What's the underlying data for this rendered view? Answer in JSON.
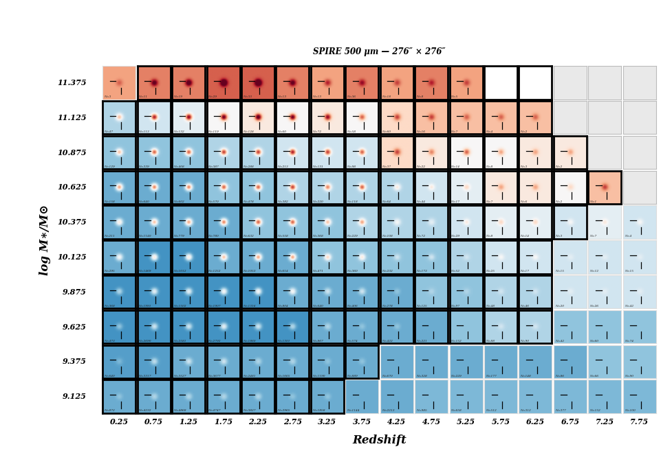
{
  "chart_data": {
    "type": "image_grid",
    "title": "SPIRE 500 μm — 276″ × 276″",
    "x_label": "Redshift",
    "y_label": "log M∗/M⊙",
    "x": [
      0.25,
      0.75,
      1.25,
      1.75,
      2.25,
      2.75,
      3.25,
      3.75,
      4.25,
      4.75,
      5.25,
      5.75,
      6.25,
      6.75,
      7.25,
      7.75
    ],
    "y": [
      11.375,
      11.125,
      10.875,
      10.625,
      10.375,
      10.125,
      9.875,
      9.625,
      9.375,
      9.125
    ],
    "vlim": [
      -1,
      1
    ],
    "n_labels": [
      [
        "N=3",
        "N=11",
        "N=19",
        "N=29",
        "N=33",
        "N=13",
        "N=13",
        "N=36",
        "N=18",
        "N=8",
        "N=5",
        null,
        null,
        null,
        null,
        null
      ],
      [
        "N=47",
        "N=113",
        "N=132",
        "N=119",
        "N=128",
        "N=60",
        "N=72",
        "N=58",
        "N=60",
        "N=16",
        "N=7",
        "N=4",
        "N=2",
        null,
        null,
        null
      ],
      [
        "N=129",
        "N=339",
        "N=408",
        "N=387",
        "N=288",
        "N=213",
        "N=131",
        "N=98",
        "N=37",
        "N=22",
        "N=14",
        "N=8",
        "N=3",
        "N=2",
        null,
        null
      ],
      [
        "N=158",
        "N=640",
        "N=602",
        "N=570",
        "N=478",
        "N=382",
        "N=220",
        "N=118",
        "N=64",
        "N=44",
        "N=17",
        "N=7",
        "N=6",
        "N=2",
        "N=1",
        null
      ],
      [
        "N=211",
        "N=1140",
        "N=779",
        "N=780",
        "N=632",
        "N=558",
        "N=368",
        "N=229",
        "N=108",
        "N=72",
        "N=29",
        "N=8",
        "N=14",
        "N=3",
        "N=7",
        "N=4"
      ],
      [
        "N=295",
        "N=1469",
        "N=1012",
        "N=1252",
        "N=1053",
        "N=614",
        "N=471",
        "N=360",
        "N=232",
        "N=173",
        "N=52",
        "N=25",
        "N=17",
        "N=15",
        "N=12",
        "N=15"
      ],
      [
        "N=368",
        "N=1991",
        "N=1502",
        "N=1907",
        "N=1316",
        "N=804",
        "N=640",
        "N=406",
        "N=278",
        "N=125",
        "N=97",
        "N=48",
        "N=46",
        "N=20",
        "N=26",
        "N=42"
      ],
      [
        "N=473",
        "N=2690",
        "N=2581",
        "N=2792",
        "N=1860",
        "N=1301",
        "N=867",
        "N=574",
        "N=422",
        "N=221",
        "N=152",
        "N=88",
        "N=90",
        "N=42",
        "N=60",
        "N=74"
      ],
      [
        "N=640",
        "N=3317",
        "N=3527",
        "N=3677",
        "N=2481",
        "N=1665",
        "N=1190",
        "N=889",
        "N=670",
        "N=328",
        "N=229",
        "N=177",
        "N=148",
        "N=86",
        "N=66",
        "N=90"
      ],
      [
        "N=872",
        "N=4232",
        "N=4868",
        "N=4747",
        "N=3827",
        "N=2965",
        "N=1858",
        "N=1144",
        "N=2213",
        "N=985",
        "N=658",
        "N=512",
        "N=312",
        "N=377",
        "N=152",
        "N=100"
      ]
    ],
    "outlined": [
      [
        false,
        true,
        true,
        true,
        true,
        true,
        true,
        true,
        true,
        true,
        true,
        true,
        true,
        false,
        false,
        false
      ],
      [
        true,
        true,
        true,
        true,
        true,
        true,
        true,
        true,
        true,
        true,
        true,
        true,
        true,
        false,
        false,
        false
      ],
      [
        true,
        true,
        true,
        true,
        true,
        true,
        true,
        true,
        true,
        true,
        true,
        true,
        true,
        true,
        false,
        false
      ],
      [
        true,
        true,
        true,
        true,
        true,
        true,
        true,
        true,
        true,
        true,
        true,
        true,
        true,
        true,
        true,
        false
      ],
      [
        true,
        true,
        true,
        true,
        true,
        true,
        true,
        true,
        true,
        true,
        true,
        true,
        true,
        true,
        false,
        false
      ],
      [
        true,
        true,
        true,
        true,
        true,
        true,
        true,
        true,
        true,
        true,
        true,
        true,
        true,
        false,
        false,
        false
      ],
      [
        true,
        true,
        true,
        true,
        true,
        true,
        true,
        true,
        true,
        true,
        true,
        true,
        true,
        false,
        false,
        false
      ],
      [
        true,
        true,
        true,
        true,
        true,
        true,
        true,
        true,
        true,
        true,
        true,
        true,
        true,
        false,
        false,
        false
      ],
      [
        true,
        true,
        true,
        true,
        true,
        true,
        true,
        true,
        false,
        false,
        false,
        false,
        false,
        false,
        false,
        false
      ],
      [
        true,
        true,
        true,
        true,
        true,
        true,
        true,
        false,
        false,
        false,
        false,
        false,
        false,
        false,
        false,
        false
      ]
    ],
    "level": [
      [
        0.4,
        0.5,
        0.5,
        0.6,
        0.6,
        0.5,
        0.4,
        0.5,
        0.4,
        0.5,
        0.4,
        null,
        null,
        null,
        null,
        null
      ],
      [
        -0.3,
        -0.2,
        -0.1,
        0.0,
        0.1,
        0.0,
        0.1,
        0.0,
        0.2,
        0.3,
        0.3,
        0.3,
        0.3,
        null,
        null,
        null
      ],
      [
        -0.4,
        -0.4,
        -0.4,
        -0.3,
        -0.3,
        -0.2,
        -0.2,
        -0.2,
        0.2,
        0.1,
        0.0,
        0.0,
        0.1,
        0.1,
        null,
        null
      ],
      [
        -0.5,
        -0.5,
        -0.5,
        -0.4,
        -0.4,
        -0.3,
        -0.3,
        -0.3,
        -0.3,
        -0.2,
        -0.1,
        0.1,
        0.1,
        0.0,
        0.3,
        null
      ],
      [
        -0.5,
        -0.5,
        -0.5,
        -0.5,
        -0.4,
        -0.4,
        -0.4,
        -0.3,
        -0.3,
        -0.3,
        -0.2,
        -0.1,
        -0.1,
        -0.2,
        -0.1,
        -0.2
      ],
      [
        -0.5,
        -0.6,
        -0.6,
        -0.5,
        -0.5,
        -0.5,
        -0.4,
        -0.4,
        -0.4,
        -0.4,
        -0.3,
        -0.2,
        -0.2,
        -0.2,
        -0.2,
        -0.2
      ],
      [
        -0.6,
        -0.6,
        -0.6,
        -0.6,
        -0.6,
        -0.5,
        -0.5,
        -0.5,
        -0.5,
        -0.4,
        -0.4,
        -0.3,
        -0.3,
        -0.2,
        -0.2,
        -0.2
      ],
      [
        -0.6,
        -0.6,
        -0.6,
        -0.6,
        -0.6,
        -0.6,
        -0.5,
        -0.5,
        -0.5,
        -0.5,
        -0.4,
        -0.3,
        -0.3,
        -0.4,
        -0.4,
        -0.4
      ],
      [
        -0.55,
        -0.55,
        -0.5,
        -0.5,
        -0.5,
        -0.5,
        -0.5,
        -0.5,
        -0.5,
        -0.5,
        -0.5,
        -0.5,
        -0.5,
        -0.5,
        -0.4,
        -0.4
      ],
      [
        -0.5,
        -0.5,
        -0.5,
        -0.5,
        -0.5,
        -0.5,
        -0.5,
        -0.5,
        -0.5,
        -0.45,
        -0.45,
        -0.45,
        -0.45,
        -0.45,
        -0.45,
        -0.45
      ]
    ],
    "peak": [
      [
        0.2,
        0.6,
        0.7,
        0.9,
        0.9,
        0.6,
        0.4,
        0.4,
        0.3,
        0.3,
        0.3,
        null,
        null,
        null,
        null,
        null
      ],
      [
        0.6,
        1.0,
        1.0,
        1.0,
        1.0,
        1.0,
        0.8,
        0.6,
        0.5,
        0.4,
        0.3,
        0.3,
        0.3,
        null,
        null,
        null
      ],
      [
        0.7,
        1.0,
        1.0,
        1.0,
        1.0,
        1.0,
        0.9,
        0.8,
        0.5,
        0.4,
        0.6,
        0.4,
        0.3,
        0.3,
        null,
        null
      ],
      [
        0.9,
        1.0,
        1.0,
        1.0,
        1.0,
        1.0,
        0.8,
        0.9,
        0.4,
        0.3,
        0.3,
        0.3,
        0.3,
        0.2,
        0.4,
        null
      ],
      [
        0.6,
        0.8,
        0.9,
        1.0,
        1.0,
        1.0,
        0.7,
        0.7,
        0.3,
        0.2,
        0.3,
        0.3,
        0.3,
        0.2,
        0.2,
        0.2
      ],
      [
        0.5,
        0.7,
        0.7,
        0.8,
        0.9,
        0.9,
        0.6,
        0.5,
        0.2,
        0.2,
        0.1,
        0.2,
        0.2,
        0.1,
        0.1,
        0.1
      ],
      [
        0.3,
        0.5,
        0.5,
        0.6,
        0.6,
        0.5,
        0.3,
        0.3,
        0.1,
        0.1,
        0.1,
        0.1,
        0.1,
        0.1,
        0.1,
        0.1
      ],
      [
        0.2,
        0.4,
        0.4,
        0.5,
        0.4,
        0.3,
        0.2,
        0.1,
        0.1,
        0.0,
        0.0,
        0.1,
        0.1,
        0.0,
        0.0,
        0.0
      ],
      [
        0.1,
        0.3,
        0.3,
        0.3,
        0.2,
        0.2,
        0.1,
        0.1,
        0.0,
        0.0,
        0.0,
        0.0,
        0.0,
        0.0,
        0.0,
        0.0
      ],
      [
        0.1,
        0.2,
        0.2,
        0.2,
        0.2,
        0.1,
        0.1,
        0.0,
        0.0,
        0.0,
        0.0,
        0.0,
        0.0,
        0.0,
        0.0,
        0.0
      ]
    ]
  }
}
